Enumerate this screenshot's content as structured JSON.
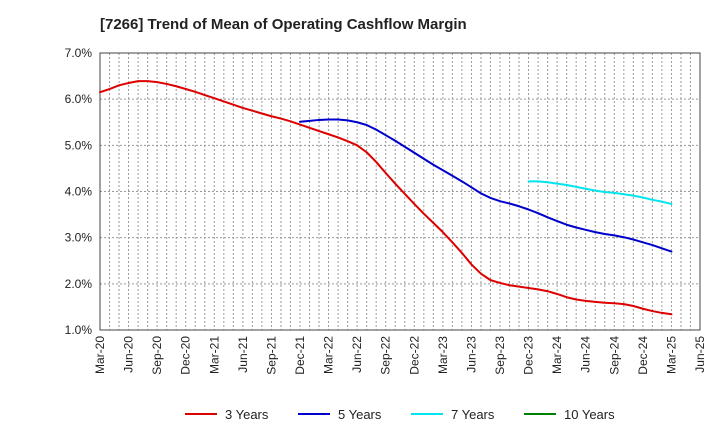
{
  "chart_data": {
    "type": "line",
    "title": "[7266]  Trend of Mean of Operating Cashflow Margin",
    "xlabel": "",
    "ylabel": "",
    "ylim": [
      1.0,
      7.0
    ],
    "y_ticks": [
      "1.0%",
      "2.0%",
      "3.0%",
      "4.0%",
      "5.0%",
      "6.0%",
      "7.0%"
    ],
    "grid": true,
    "legend_position": "bottom",
    "x_tick_labels": [
      "Mar-20",
      "Jun-20",
      "Sep-20",
      "Dec-20",
      "Mar-21",
      "Jun-21",
      "Sep-21",
      "Dec-21",
      "Mar-22",
      "Jun-22",
      "Sep-22",
      "Dec-22",
      "Mar-23",
      "Jun-23",
      "Sep-23",
      "Dec-23",
      "Mar-24",
      "Jun-24",
      "Sep-24",
      "Dec-24",
      "Mar-25",
      "Jun-25"
    ],
    "x_months": [
      "Mar-20",
      "Apr-20",
      "May-20",
      "Jun-20",
      "Jul-20",
      "Aug-20",
      "Sep-20",
      "Oct-20",
      "Nov-20",
      "Dec-20",
      "Jan-21",
      "Feb-21",
      "Mar-21",
      "Apr-21",
      "May-21",
      "Jun-21",
      "Jul-21",
      "Aug-21",
      "Sep-21",
      "Oct-21",
      "Nov-21",
      "Dec-21",
      "Jan-22",
      "Feb-22",
      "Mar-22",
      "Apr-22",
      "May-22",
      "Jun-22",
      "Jul-22",
      "Aug-22",
      "Sep-22",
      "Oct-22",
      "Nov-22",
      "Dec-22",
      "Jan-23",
      "Feb-23",
      "Mar-23",
      "Apr-23",
      "May-23",
      "Jun-23",
      "Jul-23",
      "Aug-23",
      "Sep-23",
      "Oct-23",
      "Nov-23",
      "Dec-23",
      "Jan-24",
      "Feb-24",
      "Mar-24",
      "Apr-24",
      "May-24",
      "Jun-24",
      "Jul-24",
      "Aug-24",
      "Sep-24",
      "Oct-24",
      "Nov-24",
      "Dec-24",
      "Jan-25",
      "Feb-25",
      "Mar-25",
      "Apr-25",
      "May-25",
      "Jun-25"
    ],
    "series": [
      {
        "name": "3 Years",
        "color": "#dd0000",
        "start_index": 0,
        "values": [
          6.15,
          6.22,
          6.3,
          6.35,
          6.39,
          6.39,
          6.37,
          6.33,
          6.28,
          6.22,
          6.16,
          6.09,
          6.02,
          5.95,
          5.88,
          5.81,
          5.75,
          5.69,
          5.63,
          5.58,
          5.52,
          5.45,
          5.38,
          5.31,
          5.24,
          5.17,
          5.09,
          5.0,
          4.85,
          4.64,
          4.4,
          4.17,
          3.95,
          3.73,
          3.52,
          3.32,
          3.12,
          2.9,
          2.67,
          2.42,
          2.22,
          2.08,
          2.02,
          1.97,
          1.94,
          1.91,
          1.88,
          1.84,
          1.78,
          1.71,
          1.66,
          1.63,
          1.61,
          1.59,
          1.58,
          1.56,
          1.52,
          1.46,
          1.41,
          1.37,
          1.34
        ]
      },
      {
        "name": "5 Years",
        "color": "#0000cc",
        "start_index": 21,
        "values": [
          5.51,
          5.53,
          5.55,
          5.56,
          5.56,
          5.54,
          5.5,
          5.44,
          5.34,
          5.22,
          5.1,
          4.97,
          4.84,
          4.71,
          4.58,
          4.46,
          4.34,
          4.22,
          4.09,
          3.96,
          3.86,
          3.79,
          3.74,
          3.68,
          3.61,
          3.53,
          3.44,
          3.36,
          3.28,
          3.22,
          3.17,
          3.12,
          3.08,
          3.05,
          3.01,
          2.96,
          2.9,
          2.84,
          2.77,
          2.7
        ]
      },
      {
        "name": "7 Years",
        "color": "#00e5ee",
        "start_index": 45,
        "values": [
          4.22,
          4.22,
          4.2,
          4.17,
          4.14,
          4.1,
          4.06,
          4.02,
          3.99,
          3.97,
          3.94,
          3.91,
          3.87,
          3.82,
          3.78,
          3.73
        ]
      },
      {
        "name": "10 Years",
        "color": "#008000",
        "start_index": 0,
        "values": []
      }
    ]
  }
}
